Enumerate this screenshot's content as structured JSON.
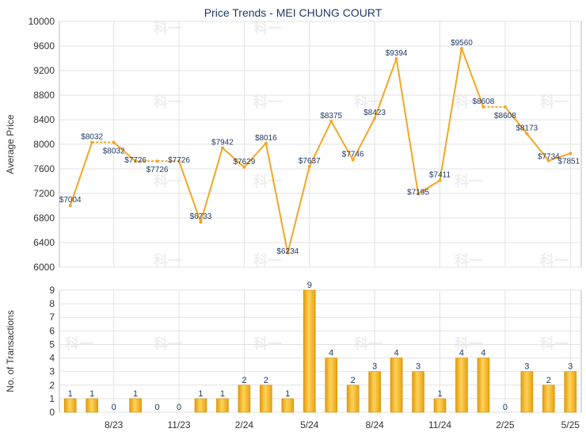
{
  "chart_data": [
    {
      "type": "line",
      "title": "Price Trends - MEI CHUNG COURT",
      "ylabel": "Average Price",
      "ylim": [
        6000,
        10000
      ],
      "yticks": [
        6000,
        6400,
        6800,
        7200,
        7600,
        8000,
        8400,
        8800,
        9200,
        9600,
        10000
      ],
      "grid": true,
      "line_color": "#f5a623",
      "n_slots": 24,
      "points": [
        {
          "i": 0,
          "value": 7004,
          "label": "$7004"
        },
        {
          "i": 1,
          "value": 8032,
          "label": "$8032"
        },
        {
          "i": 2,
          "value": 8032,
          "label": "$8032",
          "interpolated": true
        },
        {
          "i": 3,
          "value": 7726,
          "label": "$7726"
        },
        {
          "i": 4,
          "value": 7726,
          "label": "$7726",
          "interpolated": true
        },
        {
          "i": 5,
          "value": 7726,
          "label": "$7726",
          "interpolated": true
        },
        {
          "i": 6,
          "value": 6733,
          "label": "$6733"
        },
        {
          "i": 7,
          "value": 7942,
          "label": "$7942"
        },
        {
          "i": 8,
          "value": 7629,
          "label": "$7629"
        },
        {
          "i": 9,
          "value": 8016,
          "label": "$8016"
        },
        {
          "i": 10,
          "value": 6234,
          "label": "$6234"
        },
        {
          "i": 11,
          "value": 7637,
          "label": "$7637"
        },
        {
          "i": 12,
          "value": 8375,
          "label": "$8375"
        },
        {
          "i": 13,
          "value": 7746,
          "label": "$7746"
        },
        {
          "i": 14,
          "value": 8423,
          "label": "$8423"
        },
        {
          "i": 15,
          "value": 9394,
          "label": "$9394"
        },
        {
          "i": 16,
          "value": 7195,
          "label": "$7195"
        },
        {
          "i": 17,
          "value": 7411,
          "label": "$7411"
        },
        {
          "i": 18,
          "value": 9560,
          "label": "$9560"
        },
        {
          "i": 19,
          "value": 8608,
          "label": "$8608"
        },
        {
          "i": 20,
          "value": 8608,
          "label": "$8608",
          "interpolated": true
        },
        {
          "i": 21,
          "value": 8173,
          "label": "$8173"
        },
        {
          "i": 22,
          "value": 7734,
          "label": "$7734"
        },
        {
          "i": 23,
          "value": 7851,
          "label": "$7851"
        }
      ]
    },
    {
      "type": "bar",
      "ylabel": "No. of Transactions",
      "ylim": [
        0,
        9
      ],
      "yticks": [
        0,
        1,
        2,
        3,
        4,
        5,
        6,
        7,
        8,
        9
      ],
      "grid": true,
      "bar_color": "#f5b21a",
      "values": [
        1,
        1,
        0,
        1,
        0,
        0,
        1,
        1,
        2,
        2,
        1,
        9,
        4,
        2,
        3,
        4,
        3,
        1,
        4,
        4,
        0,
        3,
        2,
        3
      ],
      "xticks": [
        {
          "i": 2,
          "label": "8/23"
        },
        {
          "i": 5,
          "label": "11/23"
        },
        {
          "i": 8,
          "label": "2/24"
        },
        {
          "i": 11,
          "label": "5/24"
        },
        {
          "i": 14,
          "label": "8/24"
        },
        {
          "i": 17,
          "label": "11/24"
        },
        {
          "i": 20,
          "label": "2/25"
        },
        {
          "i": 23,
          "label": "5/25"
        }
      ]
    }
  ],
  "watermark": "科一"
}
